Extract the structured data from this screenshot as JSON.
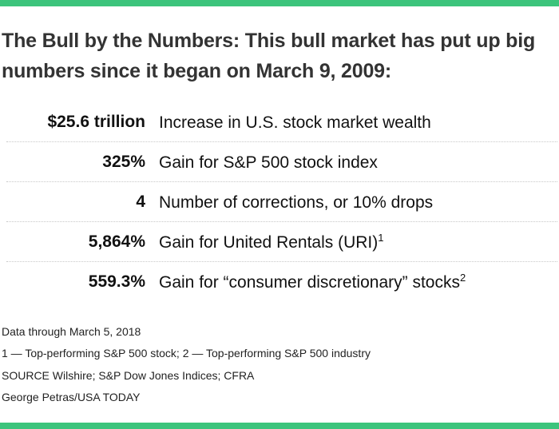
{
  "colors": {
    "accent": "#3cc47c",
    "text": "#333333"
  },
  "title": "The Bull by the Numbers: This bull market has put up big numbers since it began on March 9, 2009:",
  "chart_data": {
    "type": "table",
    "rows": [
      {
        "value": "$25.6 trillion",
        "description": "Increase in U.S. stock market wealth",
        "footnote": ""
      },
      {
        "value": "325%",
        "description": "Gain for S&P 500 stock index",
        "footnote": ""
      },
      {
        "value": "4",
        "description": "Number of corrections, or 10% drops",
        "footnote": ""
      },
      {
        "value": "5,864%",
        "description": "Gain for United Rentals (URI)",
        "footnote": "1"
      },
      {
        "value": "559.3%",
        "description": "Gain for “consumer discretionary” stocks",
        "footnote": "2"
      }
    ]
  },
  "notes": [
    "Data through March 5, 2018",
    "1 — Top-performing S&P 500 stock; 2 — Top-performing S&P 500 industry",
    "SOURCE Wilshire; S&P Dow Jones Indices; CFRA",
    "George Petras/USA TODAY"
  ]
}
